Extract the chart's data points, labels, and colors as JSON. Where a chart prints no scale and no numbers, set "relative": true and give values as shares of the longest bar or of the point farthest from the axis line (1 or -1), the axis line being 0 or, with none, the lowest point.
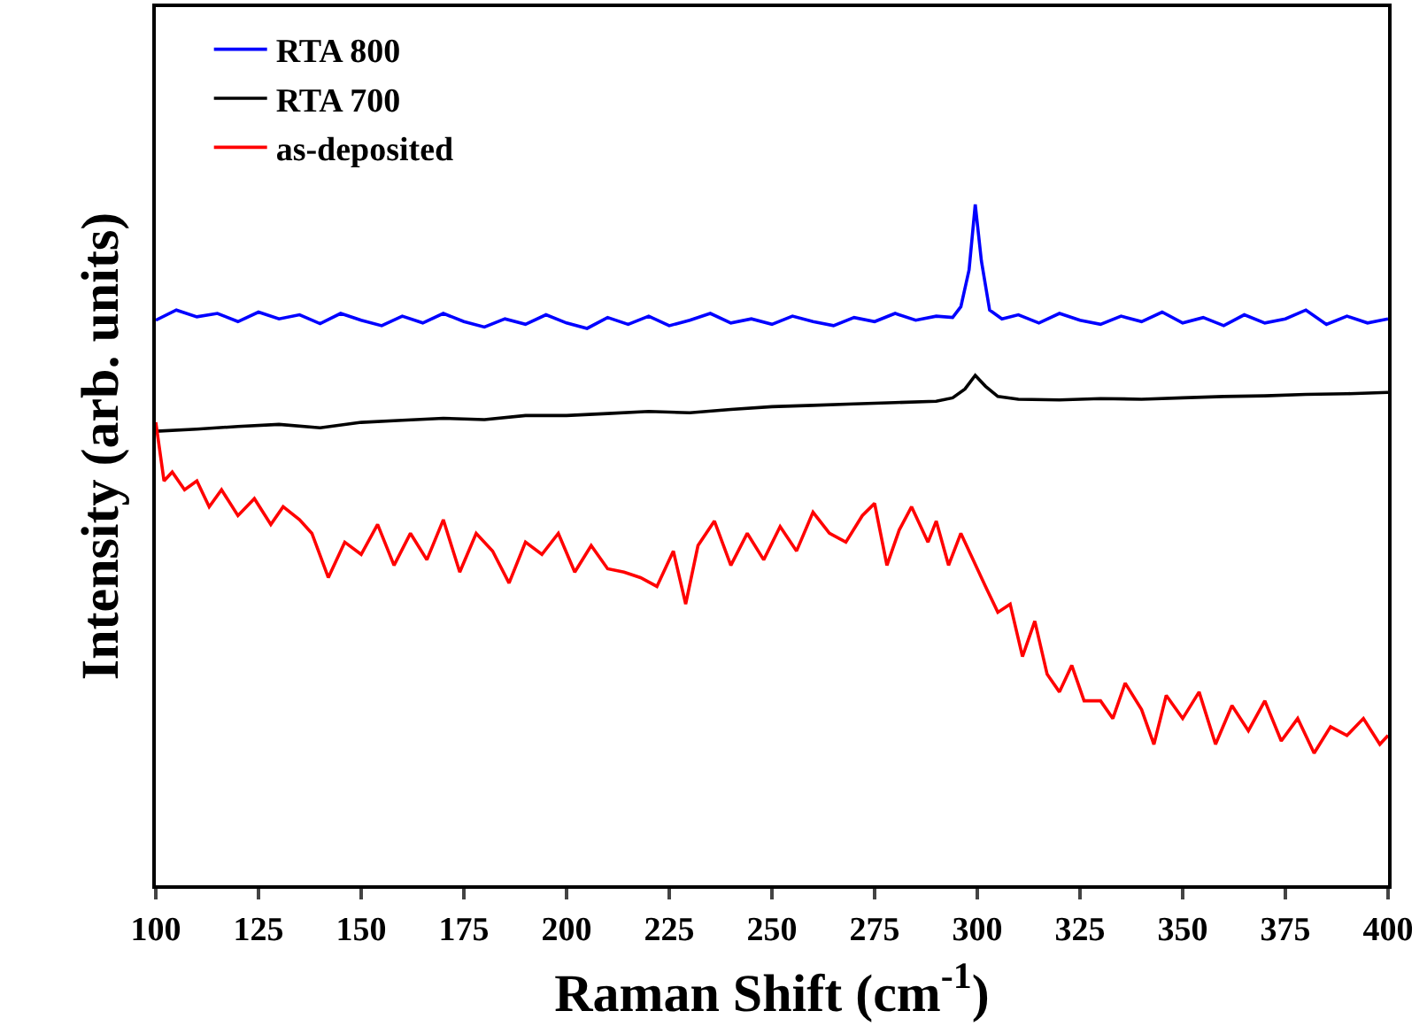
{
  "chart_data": {
    "type": "line",
    "relative": true,
    "xlabel": "Raman Shift (cm$^{-1}$)",
    "ylabel": "Intensity (arb. units)",
    "xlim": [
      100,
      400
    ],
    "xticks": [
      100,
      125,
      150,
      175,
      200,
      225,
      250,
      275,
      300,
      325,
      350,
      375,
      400
    ],
    "legend": "top left",
    "marker": "none",
    "line_style": "solid",
    "series": [
      {
        "name": "RTA 800",
        "color": "#0000ff",
        "x": [
          100,
          105,
          110,
          115,
          120,
          125,
          130,
          135,
          140,
          145,
          150,
          155,
          160,
          165,
          170,
          175,
          180,
          185,
          190,
          195,
          200,
          205,
          210,
          215,
          220,
          225,
          230,
          235,
          240,
          245,
          250,
          255,
          260,
          265,
          270,
          275,
          280,
          285,
          290,
          294,
          296,
          298,
          299.5,
          301,
          303,
          306,
          310,
          315,
          320,
          325,
          330,
          335,
          340,
          345,
          350,
          355,
          360,
          365,
          370,
          375,
          380,
          385,
          390,
          395,
          400
        ],
        "values": [
          0.83,
          0.845,
          0.835,
          0.84,
          0.828,
          0.842,
          0.832,
          0.838,
          0.825,
          0.84,
          0.83,
          0.822,
          0.836,
          0.826,
          0.84,
          0.828,
          0.82,
          0.832,
          0.824,
          0.838,
          0.826,
          0.818,
          0.834,
          0.824,
          0.836,
          0.822,
          0.83,
          0.84,
          0.826,
          0.832,
          0.824,
          0.836,
          0.828,
          0.822,
          0.834,
          0.828,
          0.84,
          0.83,
          0.836,
          0.834,
          0.85,
          0.904,
          1.0,
          0.917,
          0.845,
          0.832,
          0.838,
          0.826,
          0.84,
          0.83,
          0.824,
          0.836,
          0.828,
          0.842,
          0.826,
          0.834,
          0.822,
          0.838,
          0.826,
          0.832,
          0.845,
          0.824,
          0.836,
          0.826,
          0.832
        ]
      },
      {
        "name": "RTA 700",
        "color": "#000000",
        "x": [
          100,
          110,
          120,
          130,
          140,
          150,
          160,
          170,
          180,
          190,
          200,
          210,
          220,
          230,
          240,
          250,
          260,
          270,
          280,
          290,
          294,
          297,
          299.5,
          302,
          305,
          310,
          320,
          330,
          340,
          350,
          360,
          370,
          380,
          390,
          400
        ],
        "values": [
          0.667,
          0.67,
          0.674,
          0.677,
          0.672,
          0.68,
          0.683,
          0.686,
          0.684,
          0.69,
          0.69,
          0.693,
          0.696,
          0.694,
          0.699,
          0.703,
          0.705,
          0.707,
          0.709,
          0.711,
          0.716,
          0.729,
          0.749,
          0.733,
          0.718,
          0.714,
          0.713,
          0.715,
          0.714,
          0.716,
          0.718,
          0.719,
          0.721,
          0.722,
          0.724
        ]
      },
      {
        "name": "as-deposited",
        "color": "#ff0000",
        "x": [
          100,
          102,
          104,
          107,
          110,
          113,
          116,
          120,
          124,
          128,
          131,
          135,
          138,
          142,
          146,
          150,
          154,
          158,
          162,
          166,
          170,
          174,
          178,
          182,
          186,
          190,
          194,
          198,
          202,
          206,
          210,
          214,
          218,
          222,
          226,
          229,
          232,
          236,
          240,
          244,
          248,
          252,
          256,
          260,
          264,
          268,
          272,
          275,
          278,
          281,
          284,
          288,
          290,
          293,
          296,
          299,
          302,
          305,
          308,
          311,
          314,
          317,
          320,
          323,
          326,
          330,
          333,
          336,
          340,
          343,
          346,
          350,
          354,
          358,
          362,
          366,
          370,
          374,
          378,
          382,
          386,
          390,
          394,
          398,
          400
        ],
        "values": [
          0.68,
          0.594,
          0.607,
          0.581,
          0.594,
          0.556,
          0.581,
          0.543,
          0.568,
          0.53,
          0.556,
          0.537,
          0.517,
          0.452,
          0.504,
          0.486,
          0.53,
          0.47,
          0.517,
          0.478,
          0.537,
          0.46,
          0.517,
          0.491,
          0.444,
          0.504,
          0.486,
          0.517,
          0.46,
          0.499,
          0.465,
          0.46,
          0.452,
          0.439,
          0.491,
          0.413,
          0.499,
          0.535,
          0.47,
          0.517,
          0.478,
          0.527,
          0.491,
          0.548,
          0.517,
          0.504,
          0.543,
          0.561,
          0.47,
          0.522,
          0.556,
          0.504,
          0.535,
          0.47,
          0.517,
          0.478,
          0.439,
          0.401,
          0.413,
          0.336,
          0.388,
          0.31,
          0.284,
          0.323,
          0.271,
          0.271,
          0.245,
          0.297,
          0.258,
          0.207,
          0.279,
          0.245,
          0.284,
          0.207,
          0.264,
          0.227,
          0.271,
          0.212,
          0.245,
          0.194,
          0.233,
          0.22,
          0.245,
          0.207,
          0.22
        ]
      }
    ]
  }
}
